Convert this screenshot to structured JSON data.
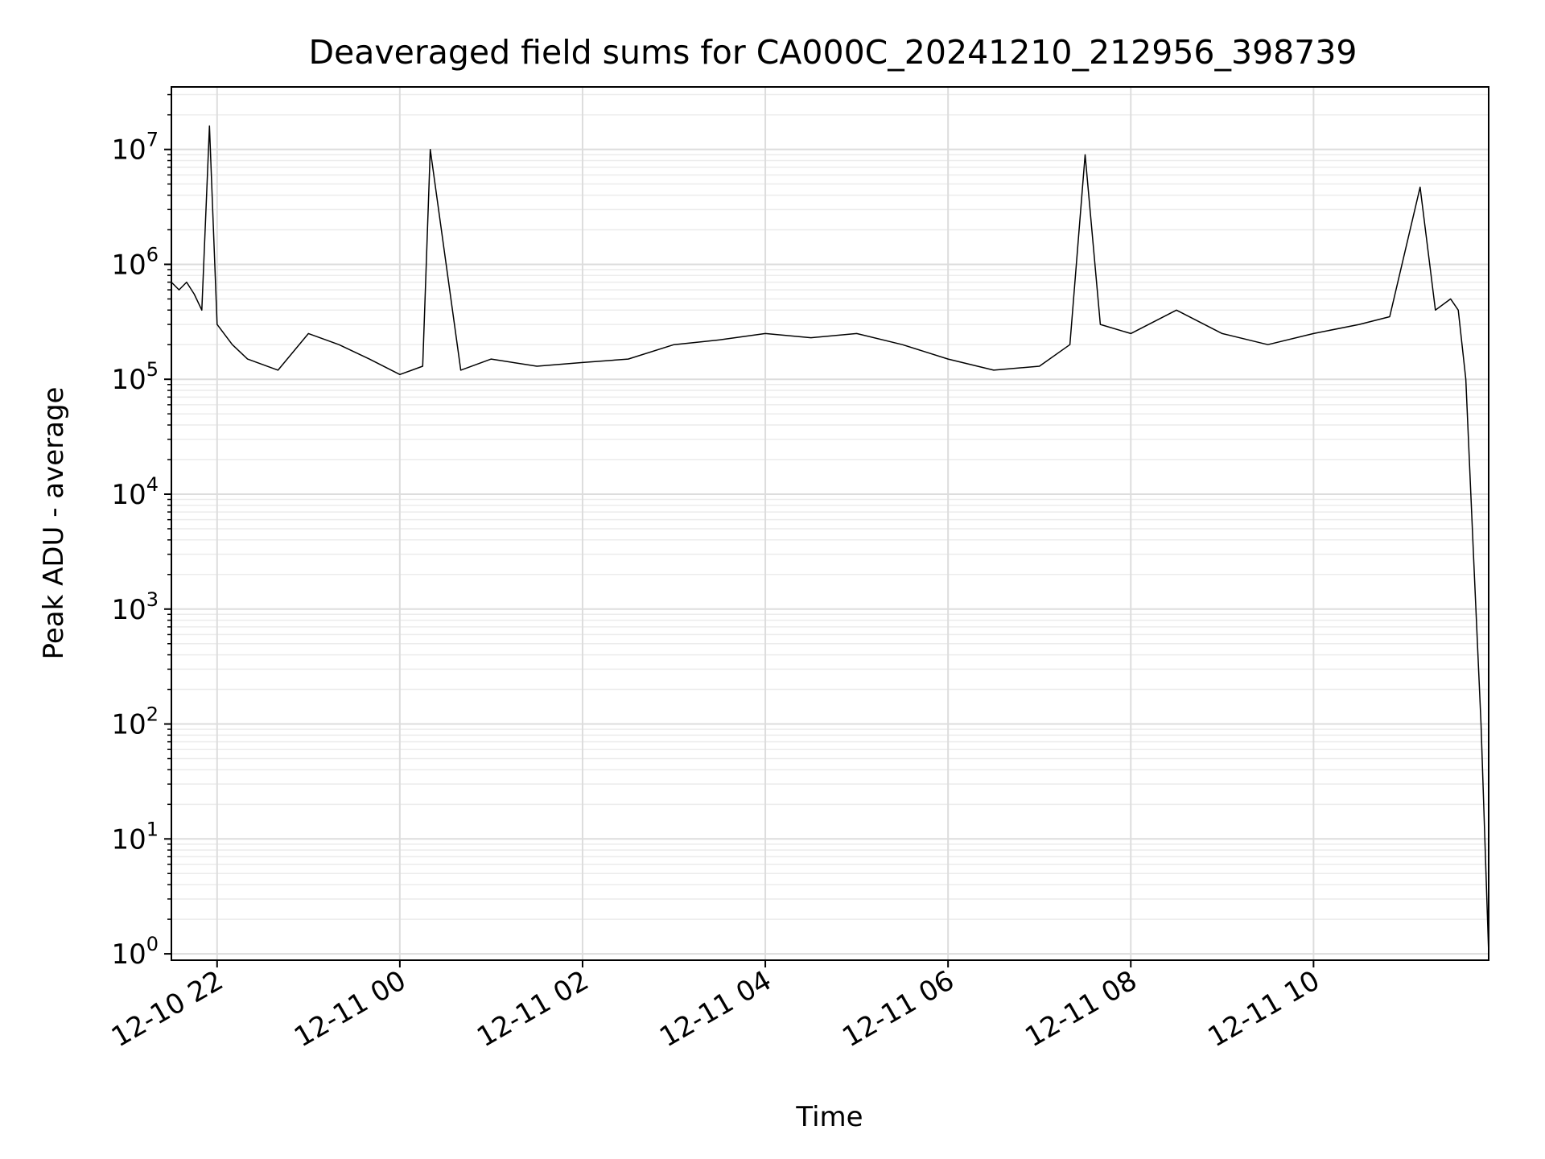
{
  "chart_data": {
    "type": "line",
    "title": "Deaveraged field sums for CA000C_20241210_212956_398739",
    "xlabel": "Time",
    "ylabel": "Peak ADU - average",
    "y_scale": "log",
    "ylim": [
      0.88,
      35000000
    ],
    "xlim": [
      "2024-12-10 21:30",
      "2024-12-11 11:55"
    ],
    "grid": true,
    "legend": "none",
    "line_color": "#000000",
    "x_ticks": [
      {
        "label": "12-10 22",
        "value": "2024-12-10 22:00"
      },
      {
        "label": "12-11 00",
        "value": "2024-12-11 00:00"
      },
      {
        "label": "12-11 02",
        "value": "2024-12-11 02:00"
      },
      {
        "label": "12-11 04",
        "value": "2024-12-11 04:00"
      },
      {
        "label": "12-11 06",
        "value": "2024-12-11 06:00"
      },
      {
        "label": "12-11 08",
        "value": "2024-12-11 08:00"
      },
      {
        "label": "12-11 10",
        "value": "2024-12-11 10:00"
      }
    ],
    "y_ticks": [
      {
        "base": "10",
        "exp": "0",
        "value": 1
      },
      {
        "base": "10",
        "exp": "1",
        "value": 10
      },
      {
        "base": "10",
        "exp": "2",
        "value": 100
      },
      {
        "base": "10",
        "exp": "3",
        "value": 1000
      },
      {
        "base": "10",
        "exp": "4",
        "value": 10000
      },
      {
        "base": "10",
        "exp": "5",
        "value": 100000
      },
      {
        "base": "10",
        "exp": "6",
        "value": 1000000
      },
      {
        "base": "10",
        "exp": "7",
        "value": 10000000
      }
    ],
    "series": [
      {
        "name": "",
        "x": [
          "2024-12-10 21:30",
          "2024-12-10 21:35",
          "2024-12-10 21:40",
          "2024-12-10 21:45",
          "2024-12-10 21:50",
          "2024-12-10 21:55",
          "2024-12-10 22:00",
          "2024-12-10 22:10",
          "2024-12-10 22:20",
          "2024-12-10 22:40",
          "2024-12-10 23:00",
          "2024-12-10 23:20",
          "2024-12-10 23:40",
          "2024-12-11 00:00",
          "2024-12-11 00:15",
          "2024-12-11 00:20",
          "2024-12-11 00:40",
          "2024-12-11 01:00",
          "2024-12-11 01:30",
          "2024-12-11 02:00",
          "2024-12-11 02:30",
          "2024-12-11 03:00",
          "2024-12-11 03:30",
          "2024-12-11 04:00",
          "2024-12-11 04:30",
          "2024-12-11 05:00",
          "2024-12-11 05:30",
          "2024-12-11 06:00",
          "2024-12-11 06:30",
          "2024-12-11 07:00",
          "2024-12-11 07:20",
          "2024-12-11 07:30",
          "2024-12-11 07:40",
          "2024-12-11 08:00",
          "2024-12-11 08:30",
          "2024-12-11 09:00",
          "2024-12-11 09:30",
          "2024-12-11 10:00",
          "2024-12-11 10:30",
          "2024-12-11 10:50",
          "2024-12-11 11:10",
          "2024-12-11 11:20",
          "2024-12-11 11:30",
          "2024-12-11 11:35",
          "2024-12-11 11:40",
          "2024-12-11 11:45",
          "2024-12-11 11:50",
          "2024-12-11 11:55"
        ],
        "values": [
          700000,
          600000,
          700000,
          550000,
          400000,
          16000000,
          300000,
          200000,
          150000,
          120000,
          250000,
          200000,
          150000,
          110000,
          130000,
          10000000,
          120000,
          150000,
          130000,
          140000,
          150000,
          200000,
          220000,
          250000,
          230000,
          250000,
          200000,
          150000,
          120000,
          130000,
          200000,
          9000000,
          300000,
          250000,
          400000,
          250000,
          200000,
          250000,
          300000,
          350000,
          4700000,
          400000,
          500000,
          400000,
          100000,
          3000,
          100,
          1
        ]
      }
    ]
  }
}
